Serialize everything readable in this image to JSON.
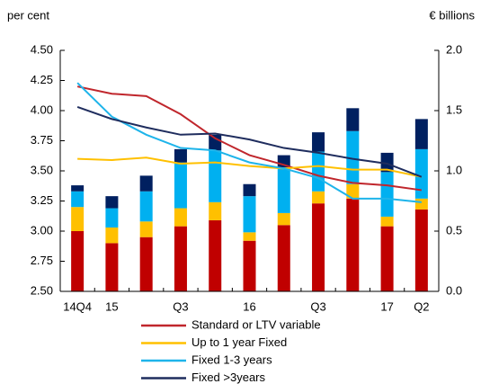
{
  "chart_data": {
    "type": "combo",
    "y_label": "per cent",
    "y2_label": "€ billions",
    "categories": [
      "14Q4",
      "15",
      null,
      "Q3",
      null,
      "16",
      null,
      "Q3",
      null,
      "17",
      "Q2"
    ],
    "ylim": [
      2.5,
      4.5
    ],
    "yticks": [
      {
        "value": 2.5,
        "label": "2.50"
      },
      {
        "value": 2.75,
        "label": "2.75"
      },
      {
        "value": 3,
        "label": "3.00"
      },
      {
        "value": 3.25,
        "label": "3.25"
      },
      {
        "value": 3.5,
        "label": "3.50"
      },
      {
        "value": 3.75,
        "label": "3.75"
      },
      {
        "value": 4,
        "label": "4.00"
      },
      {
        "value": 4.25,
        "label": "4.25"
      },
      {
        "value": 4.5,
        "label": "4.50"
      }
    ],
    "y2lim": [
      0,
      2
    ],
    "y2ticks": [
      {
        "value": 0,
        "label": "0.0"
      },
      {
        "value": 0.5,
        "label": "0.5"
      },
      {
        "value": 1,
        "label": "1.0"
      },
      {
        "value": 1.5,
        "label": "1.5"
      },
      {
        "value": 2,
        "label": "2.0"
      }
    ],
    "series": [
      {
        "name": "Standard or LTV variable",
        "type": "line",
        "color": "#c0262c",
        "values": [
          4.2,
          4.14,
          4.12,
          3.97,
          3.77,
          3.63,
          3.55,
          3.46,
          3.4,
          3.38,
          3.34
        ]
      },
      {
        "name": "Up to 1 year Fixed",
        "type": "line",
        "color": "#ffc000",
        "values": [
          3.6,
          3.59,
          3.61,
          3.56,
          3.57,
          3.54,
          3.52,
          3.54,
          3.51,
          3.51,
          3.45
        ]
      },
      {
        "name": "Fixed 1-3 years",
        "type": "line",
        "color": "#1eb4ea",
        "values": [
          4.23,
          3.95,
          3.8,
          3.69,
          3.67,
          3.57,
          3.52,
          3.44,
          3.27,
          3.27,
          3.24
        ]
      },
      {
        "name": "Fixed >3years",
        "type": "line",
        "color": "#1f2d5e",
        "values": [
          4.03,
          3.93,
          3.86,
          3.8,
          3.81,
          3.76,
          3.69,
          3.65,
          3.6,
          3.56,
          3.45
        ]
      },
      {
        "type": "bar",
        "axis": "y2",
        "color": "#c00000",
        "values": [
          0.5,
          0.4,
          0.45,
          0.54,
          0.59,
          0.42,
          0.55,
          0.73,
          0.77,
          0.54,
          0.68
        ]
      },
      {
        "type": "bar",
        "axis": "y2",
        "color": "#ffc000",
        "values": [
          0.2,
          0.13,
          0.13,
          0.15,
          0.15,
          0.07,
          0.1,
          0.1,
          0.12,
          0.08,
          0.09
        ]
      },
      {
        "type": "bar",
        "axis": "y2",
        "color": "#00b0f0",
        "values": [
          0.13,
          0.16,
          0.25,
          0.38,
          0.43,
          0.3,
          0.38,
          0.33,
          0.44,
          0.37,
          0.41
        ]
      },
      {
        "type": "bar",
        "axis": "y2",
        "color": "#002060",
        "values": [
          0.05,
          0.1,
          0.13,
          0.11,
          0.13,
          0.1,
          0.1,
          0.16,
          0.19,
          0.16,
          0.25
        ]
      }
    ]
  }
}
